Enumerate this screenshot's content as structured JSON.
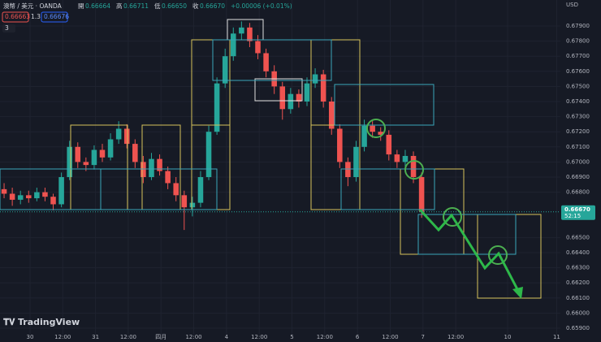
{
  "header": {
    "symbol": "澳幣 / 美元 · OANDA",
    "open_label": "開",
    "open": "0.66664",
    "high_label": "高",
    "high": "0.66711",
    "low_label": "低",
    "low": "0.66650",
    "close_label": "收",
    "close": "0.66670",
    "change": "+0.00006 (+0.01%)",
    "bid": "0.66663",
    "spread": "1.3",
    "ask": "0.66676",
    "indicators": "3",
    "currency": "USD",
    "brand": "TradingView"
  },
  "chart_data": {
    "type": "candlestick",
    "up_color": "#26a69a",
    "down_color": "#ef5350",
    "grid": true,
    "x": [
      1.5,
      4.5,
      7.5,
      10.5,
      13.5,
      16.5,
      19.5,
      22.5,
      25.5,
      28.5,
      31.5,
      34.5,
      37.5,
      40.5,
      43.5,
      46.5,
      49.5,
      52.5,
      55.5,
      58.5,
      61.5,
      64.5,
      67.5,
      70.5,
      73.5,
      76.5,
      79.5,
      82.5,
      85.5,
      88.5,
      91.5,
      94.5,
      97.5,
      100.5,
      103.5,
      106.5,
      109.5,
      112.5,
      115.5,
      118.5,
      121.5,
      124.5,
      127.5,
      130.5,
      133.5,
      136.5,
      139.5,
      142.5,
      145.5,
      148.5,
      151.5,
      154.5
    ],
    "open": [
      0.6682,
      0.6679,
      0.6675,
      0.6678,
      0.6676,
      0.668,
      0.6677,
      0.6672,
      0.669,
      0.671,
      0.67,
      0.6698,
      0.6708,
      0.6703,
      0.6715,
      0.6722,
      0.6712,
      0.67,
      0.669,
      0.6702,
      0.6694,
      0.6686,
      0.6678,
      0.667,
      0.6673,
      0.669,
      0.672,
      0.6752,
      0.677,
      0.6785,
      0.6789,
      0.678,
      0.6772,
      0.676,
      0.675,
      0.6735,
      0.6745,
      0.674,
      0.6752,
      0.6758,
      0.674,
      0.6722,
      0.67,
      0.669,
      0.671,
      0.6724,
      0.672,
      0.6718,
      0.6705,
      0.67,
      0.6704,
      0.669
    ],
    "high": [
      0.6686,
      0.6683,
      0.6681,
      0.6681,
      0.6683,
      0.6683,
      0.6679,
      0.6693,
      0.6714,
      0.6713,
      0.6703,
      0.6711,
      0.6712,
      0.6719,
      0.6727,
      0.6725,
      0.6715,
      0.6704,
      0.6706,
      0.6705,
      0.6697,
      0.669,
      0.6681,
      0.6677,
      0.6694,
      0.6724,
      0.6756,
      0.6775,
      0.6789,
      0.6793,
      0.6792,
      0.6784,
      0.6775,
      0.6764,
      0.6753,
      0.6749,
      0.6748,
      0.6756,
      0.6762,
      0.6761,
      0.6743,
      0.6725,
      0.6703,
      0.6714,
      0.6728,
      0.6727,
      0.6723,
      0.6721,
      0.6708,
      0.6708,
      0.6707,
      0.6693
    ],
    "low": [
      0.6676,
      0.6671,
      0.6672,
      0.6673,
      0.6674,
      0.6674,
      0.6668,
      0.667,
      0.6688,
      0.6696,
      0.6694,
      0.6695,
      0.67,
      0.6701,
      0.6712,
      0.6709,
      0.6696,
      0.6686,
      0.6688,
      0.6691,
      0.6682,
      0.6674,
      0.6655,
      0.6664,
      0.667,
      0.6688,
      0.6718,
      0.6749,
      0.6767,
      0.6781,
      0.6776,
      0.6768,
      0.6756,
      0.6745,
      0.6728,
      0.6732,
      0.6736,
      0.6737,
      0.6749,
      0.6736,
      0.6718,
      0.6696,
      0.6684,
      0.6687,
      0.6707,
      0.6716,
      0.6714,
      0.6701,
      0.6696,
      0.6697,
      0.6686,
      0.6663
    ],
    "close": [
      0.6679,
      0.6675,
      0.6678,
      0.6676,
      0.668,
      0.6677,
      0.6672,
      0.669,
      0.671,
      0.67,
      0.6698,
      0.6708,
      0.6703,
      0.6715,
      0.6722,
      0.6712,
      0.67,
      0.669,
      0.6702,
      0.6694,
      0.6686,
      0.6678,
      0.667,
      0.6673,
      0.669,
      0.672,
      0.6752,
      0.677,
      0.6785,
      0.6789,
      0.678,
      0.6772,
      0.676,
      0.675,
      0.6735,
      0.6745,
      0.674,
      0.6752,
      0.6758,
      0.674,
      0.6722,
      0.67,
      0.669,
      0.671,
      0.6724,
      0.672,
      0.6718,
      0.6705,
      0.67,
      0.6704,
      0.669,
      0.6667
    ],
    "xlim": [
      0,
      205.36
    ],
    "ylim": [
      0.65857,
      0.68072
    ],
    "xticks": [
      {
        "value": 11,
        "label": "30"
      },
      {
        "value": 23,
        "label": "12:00"
      },
      {
        "value": 35,
        "label": "31"
      },
      {
        "value": 47,
        "label": "12:00"
      },
      {
        "value": 59,
        "label": "四月"
      },
      {
        "value": 71,
        "label": "12:00"
      },
      {
        "value": 83,
        "label": "4"
      },
      {
        "value": 95,
        "label": "12:00"
      },
      {
        "value": 107,
        "label": "5"
      },
      {
        "value": 119,
        "label": "12:00"
      },
      {
        "value": 131,
        "label": "6"
      },
      {
        "value": 143,
        "label": "12:00"
      },
      {
        "value": 155,
        "label": "7"
      },
      {
        "value": 167,
        "label": "12:00"
      },
      {
        "value": 186,
        "label": "10"
      },
      {
        "value": 204,
        "label": "11"
      }
    ],
    "yticks": [
      {
        "value": 0.659,
        "label": "0.65900"
      },
      {
        "value": 0.66,
        "label": "0.66000"
      },
      {
        "value": 0.661,
        "label": "0.66100"
      },
      {
        "value": 0.662,
        "label": "0.66200"
      },
      {
        "value": 0.663,
        "label": "0.66300"
      },
      {
        "value": 0.664,
        "label": "0.66400"
      },
      {
        "value": 0.665,
        "label": "0.66500"
      },
      {
        "value": 0.668,
        "label": "0.66800"
      },
      {
        "value": 0.669,
        "label": "0.66900"
      },
      {
        "value": 0.67,
        "label": "0.67000"
      },
      {
        "value": 0.671,
        "label": "0.67100"
      },
      {
        "value": 0.672,
        "label": "0.67200"
      },
      {
        "value": 0.673,
        "label": "0.67300"
      },
      {
        "value": 0.674,
        "label": "0.67400"
      },
      {
        "value": 0.675,
        "label": "0.67500"
      },
      {
        "value": 0.676,
        "label": "0.67600"
      },
      {
        "value": 0.677,
        "label": "0.67700"
      },
      {
        "value": 0.678,
        "label": "0.67800"
      },
      {
        "value": 0.679,
        "label": "0.67900"
      }
    ],
    "last_price": {
      "value": 0.6667,
      "label": "0.66670"
    },
    "countdown": "52:15"
  }
}
